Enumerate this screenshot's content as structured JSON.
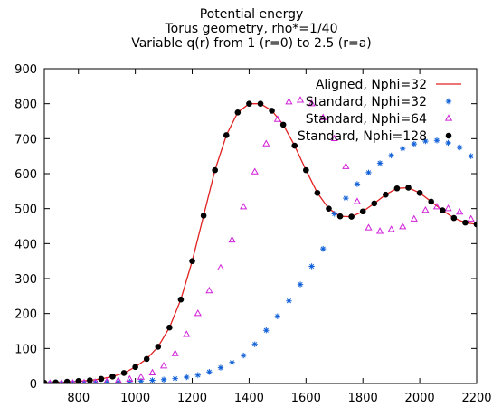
{
  "chart_data": {
    "type": "scatter",
    "title_lines": [
      "Potential energy",
      "Torus geometry, rho*=1/40",
      "Variable q(r) from 1  (r=0) to 2.5 (r=a)"
    ],
    "xlabel": "",
    "ylabel": "",
    "xlim": [
      680,
      2200
    ],
    "ylim": [
      0,
      900
    ],
    "xticks": [
      800,
      1000,
      1200,
      1400,
      1600,
      1800,
      2000,
      2200
    ],
    "yticks": [
      0,
      100,
      200,
      300,
      400,
      500,
      600,
      700,
      800,
      900
    ],
    "grid": false,
    "legend_position": "top-right",
    "series": [
      {
        "name": "Aligned, Nphi=32",
        "style": "line",
        "color": "#e02020",
        "x": [
          680,
          720,
          760,
          800,
          840,
          880,
          920,
          960,
          1000,
          1040,
          1080,
          1120,
          1160,
          1200,
          1240,
          1280,
          1320,
          1360,
          1400,
          1440,
          1480,
          1520,
          1560,
          1600,
          1640,
          1680,
          1720,
          1760,
          1800,
          1840,
          1880,
          1920,
          1960,
          2000,
          2040,
          2080,
          2120,
          2160,
          2200
        ],
        "y": [
          2,
          3,
          4,
          6,
          9,
          13,
          20,
          30,
          47,
          70,
          105,
          160,
          240,
          350,
          480,
          610,
          710,
          775,
          800,
          800,
          780,
          740,
          680,
          610,
          545,
          500,
          478,
          477,
          492,
          515,
          540,
          558,
          560,
          545,
          520,
          495,
          473,
          460,
          455
        ]
      },
      {
        "name": "Standard, Nphi=32",
        "style": "marker-star",
        "color": "#1060d8",
        "x": [
          700,
          740,
          780,
          820,
          860,
          900,
          940,
          980,
          1020,
          1060,
          1100,
          1140,
          1180,
          1220,
          1260,
          1300,
          1340,
          1380,
          1420,
          1460,
          1500,
          1540,
          1580,
          1620,
          1660,
          1700,
          1740,
          1780,
          1820,
          1860,
          1900,
          1940,
          1980,
          2020,
          2060,
          2100,
          2140,
          2180
        ],
        "y": [
          0,
          0,
          1,
          1,
          2,
          3,
          4,
          5,
          7,
          9,
          11,
          14,
          18,
          24,
          33,
          45,
          60,
          80,
          112,
          152,
          192,
          236,
          283,
          335,
          385,
          485,
          530,
          570,
          603,
          630,
          652,
          672,
          685,
          693,
          695,
          688,
          675,
          650
        ]
      },
      {
        "name": "Standard, Nphi=64",
        "style": "marker-triangle",
        "color": "#d020d8",
        "x": [
          700,
          740,
          780,
          820,
          860,
          900,
          940,
          980,
          1020,
          1060,
          1100,
          1140,
          1180,
          1220,
          1260,
          1300,
          1340,
          1380,
          1420,
          1460,
          1500,
          1540,
          1580,
          1620,
          1660,
          1700,
          1740,
          1780,
          1820,
          1860,
          1900,
          1940,
          1980,
          2020,
          2060,
          2100,
          2140,
          2180
        ],
        "y": [
          0,
          0,
          1,
          2,
          3,
          5,
          8,
          12,
          18,
          30,
          50,
          85,
          140,
          200,
          265,
          330,
          410,
          505,
          605,
          685,
          755,
          805,
          810,
          800,
          760,
          700,
          620,
          520,
          445,
          435,
          440,
          448,
          470,
          495,
          505,
          500,
          490,
          470
        ]
      },
      {
        "name": "Standard, Nphi=128",
        "style": "marker-dot",
        "color": "#000000",
        "x": [
          680,
          720,
          760,
          800,
          840,
          880,
          920,
          960,
          1000,
          1040,
          1080,
          1120,
          1160,
          1200,
          1240,
          1280,
          1320,
          1360,
          1400,
          1440,
          1480,
          1520,
          1560,
          1600,
          1640,
          1680,
          1720,
          1760,
          1800,
          1840,
          1880,
          1920,
          1960,
          2000,
          2040,
          2080,
          2120,
          2160,
          2200
        ],
        "y": [
          2,
          3,
          5,
          7,
          9,
          13,
          20,
          30,
          47,
          70,
          105,
          160,
          240,
          350,
          480,
          610,
          710,
          775,
          800,
          800,
          780,
          740,
          680,
          610,
          545,
          500,
          478,
          477,
          492,
          515,
          540,
          558,
          560,
          545,
          520,
          495,
          473,
          460,
          455
        ]
      }
    ]
  }
}
